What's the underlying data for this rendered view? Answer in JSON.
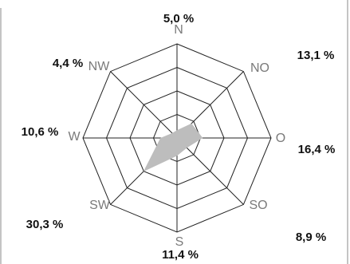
{
  "colors": {
    "grid": "#222222",
    "area": "#bdbdbd",
    "frame": "#888888",
    "direction_text": "#7a7a7a",
    "value_text": "#111111"
  },
  "chart_data": {
    "type": "radar",
    "title": "",
    "unit": "%",
    "rings": 4,
    "grid": true,
    "directions": [
      "N",
      "NO",
      "O",
      "SO",
      "S",
      "SW",
      "W",
      "NW"
    ],
    "values": [
      5.0,
      13.1,
      16.4,
      8.9,
      11.4,
      30.3,
      10.6,
      4.4
    ],
    "value_labels": [
      "5,0 %",
      "13,1 %",
      "16,4 %",
      "8,9 %",
      "11,4 %",
      "30,3 %",
      "10,6 %",
      "4,4 %"
    ],
    "max_value": 60
  }
}
